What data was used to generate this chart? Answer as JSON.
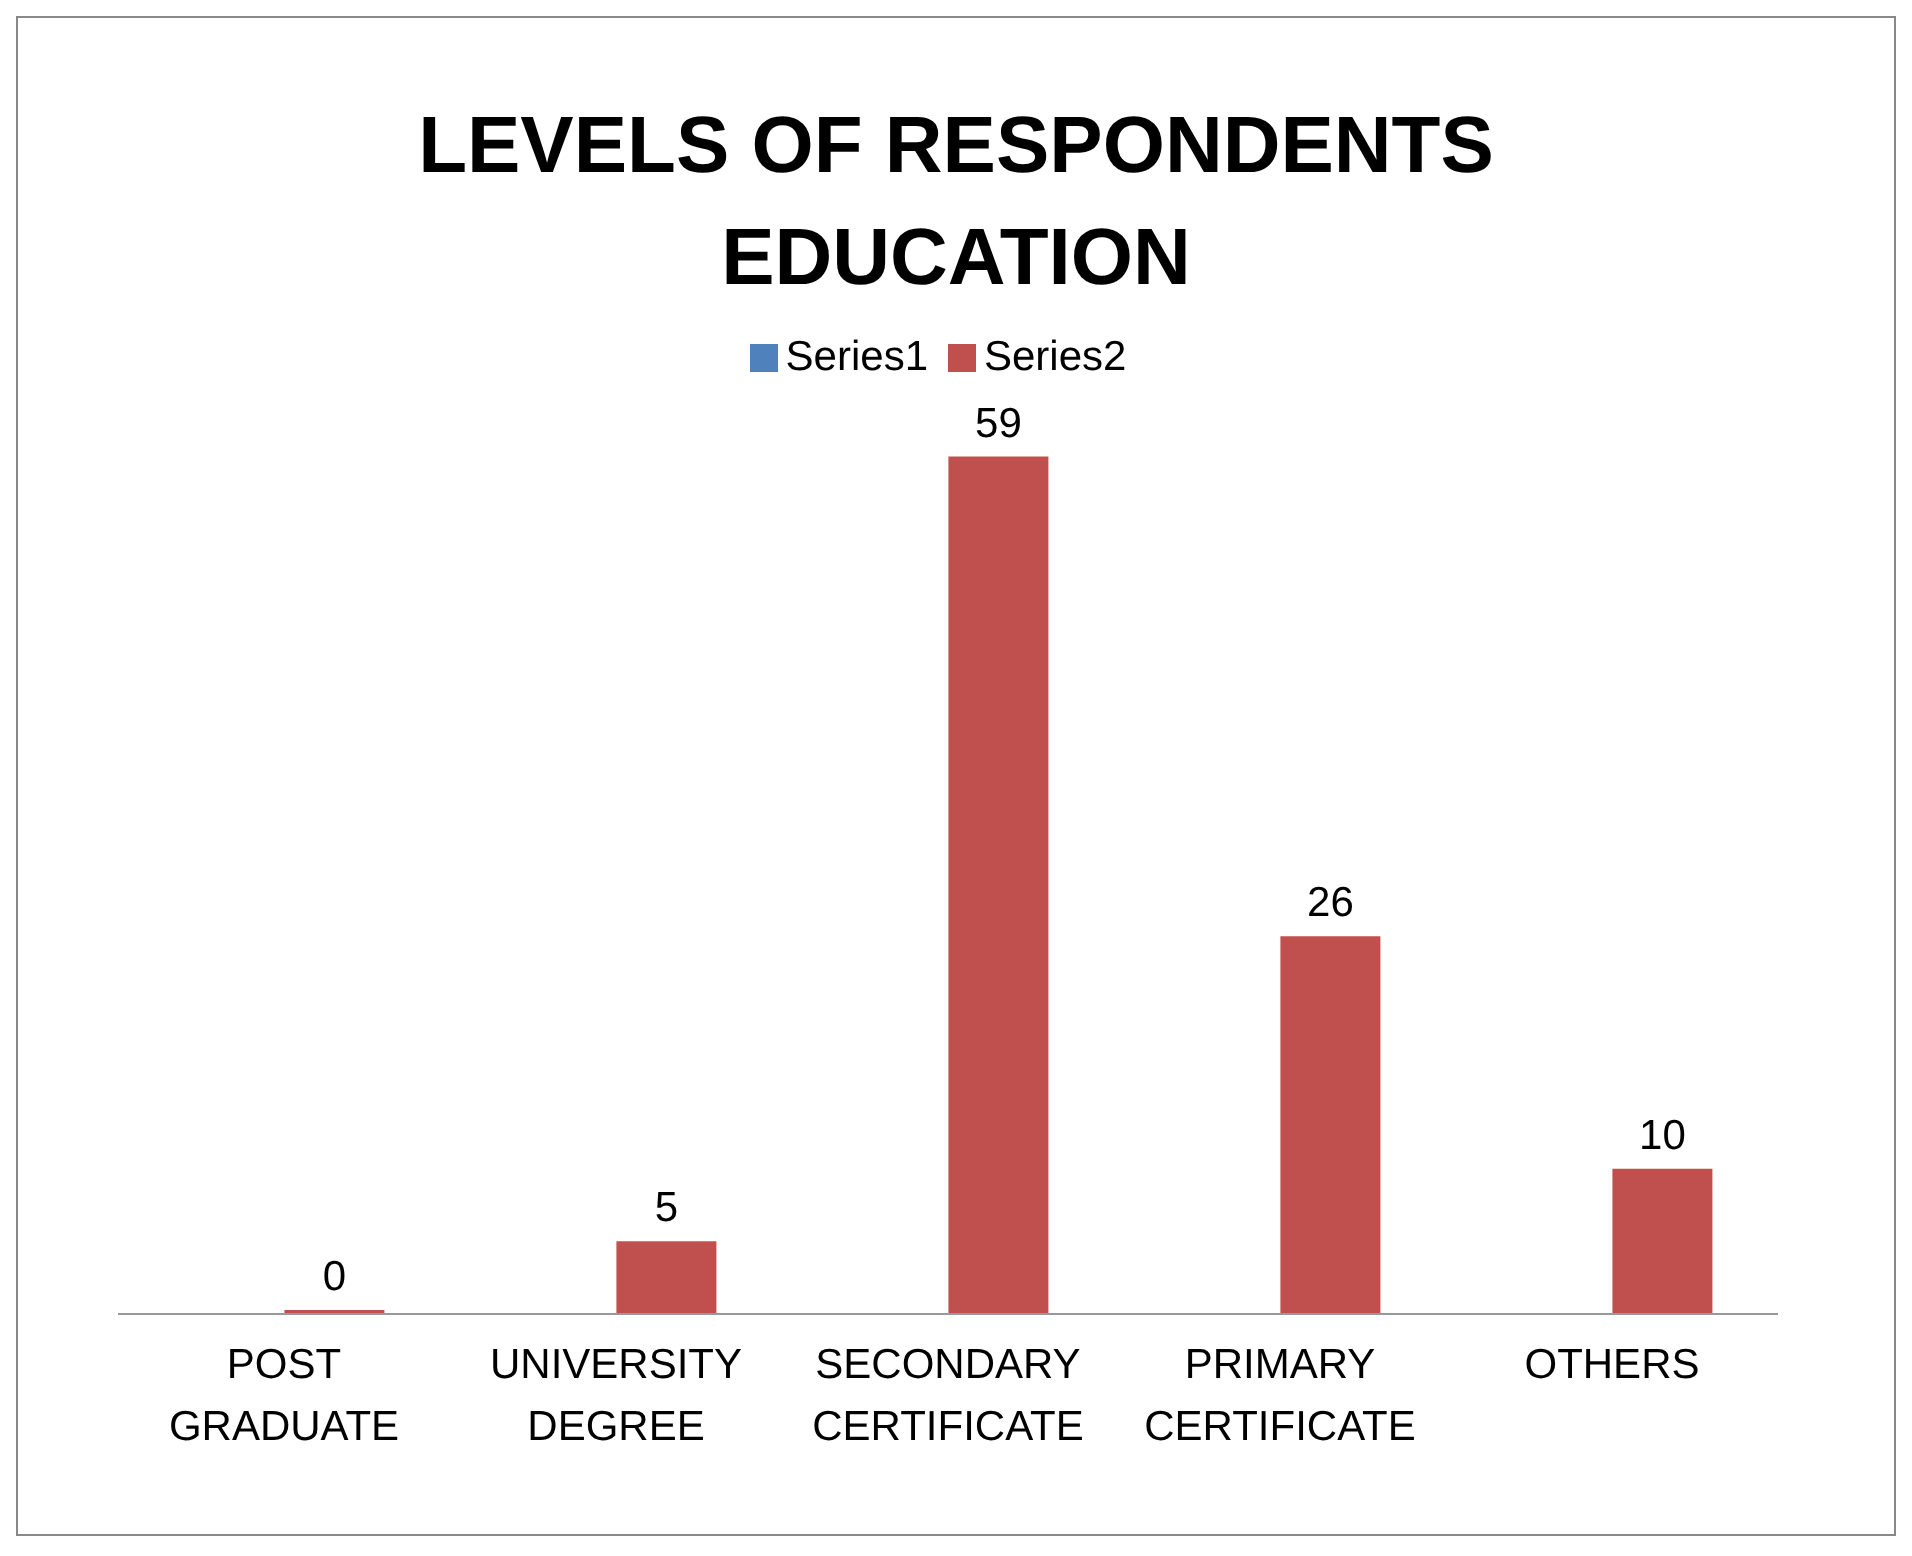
{
  "chart_data": {
    "type": "bar",
    "title": "LEVELS OF RESPONDENTS EDUCATION",
    "categories": [
      "POST GRADUATE",
      "UNIVERSITY DEGREE",
      "SECONDARY CERTIFICATE",
      "PRIMARY CERTIFICATE",
      "OTHERS"
    ],
    "series": [
      {
        "name": "Series1",
        "color": "#4f81bd",
        "values": [
          null,
          null,
          null,
          null,
          null
        ]
      },
      {
        "name": "Series2",
        "color": "#c0504d",
        "values": [
          0,
          5,
          59,
          26,
          10
        ]
      }
    ],
    "data_labels": true,
    "legend": "top",
    "grid": false,
    "tick_labels": "x"
  }
}
